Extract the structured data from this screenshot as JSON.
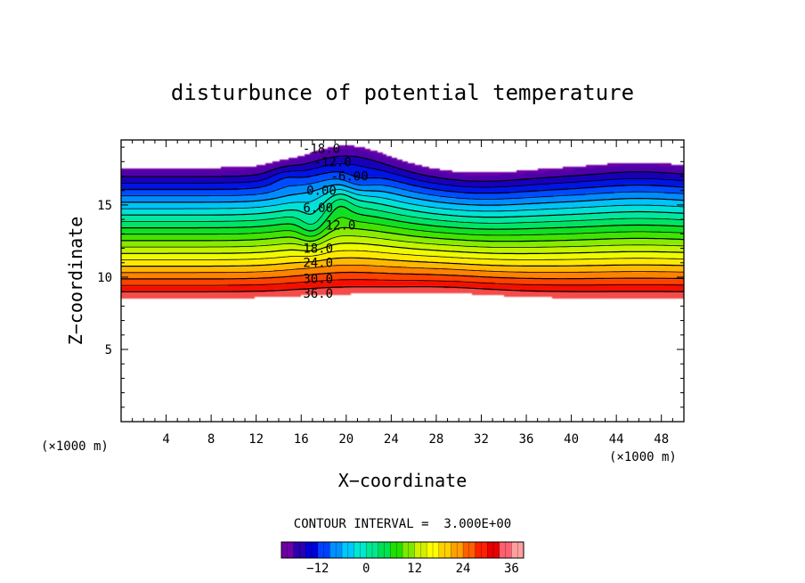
{
  "chart_data": {
    "type": "contour",
    "title": "disturbunce of potential temperature",
    "xlabel": "X−coordinate",
    "ylabel": "Z−coordinate",
    "x_unit_label": "(×1000 m)",
    "z_unit_label": "(×1000 m)",
    "xlim": [
      0,
      50
    ],
    "ylim": [
      0,
      19.5
    ],
    "x_ticks": [
      4,
      8,
      12,
      16,
      20,
      24,
      28,
      32,
      36,
      40,
      44,
      48
    ],
    "y_ticks": [
      5,
      10,
      15
    ],
    "contour_interval_text": "CONTOUR INTERVAL =  3.000E+00",
    "contour_interval": 3,
    "negative_contours_dashed": true,
    "contour_labels": [
      {
        "text": "-18.0",
        "x": 17.8,
        "z": 18.9
      },
      {
        "text": "-12.0",
        "x": 18.8,
        "z": 18.0
      },
      {
        "text": "-6.00",
        "x": 20.3,
        "z": 17.0
      },
      {
        "text": "0.00",
        "x": 17.8,
        "z": 16.0
      },
      {
        "text": "6.00",
        "x": 17.5,
        "z": 14.8
      },
      {
        "text": "12.0",
        "x": 19.5,
        "z": 13.6
      },
      {
        "text": "18.0",
        "x": 17.5,
        "z": 12.0
      },
      {
        "text": "24.0",
        "x": 17.5,
        "z": 11.0
      },
      {
        "text": "30.0",
        "x": 17.5,
        "z": 9.9
      },
      {
        "text": "36.0",
        "x": 17.5,
        "z": 8.9
      }
    ],
    "colorbar": {
      "min": -21,
      "max": 39,
      "tick_labels": [
        "−12",
        "0",
        "12",
        "24",
        "36"
      ],
      "tick_values": [
        -12,
        0,
        12,
        24,
        36
      ],
      "colors": [
        "#6f00a8",
        "#2a00b0",
        "#0000d8",
        "#0040ff",
        "#0090ff",
        "#00c8ff",
        "#00e8d0",
        "#00e890",
        "#00e050",
        "#20e000",
        "#80e800",
        "#d0f000",
        "#ffff00",
        "#ffd000",
        "#ffa000",
        "#ff6000",
        "#ff2000",
        "#e80000",
        "#ff6070",
        "#ffa0a0"
      ]
    }
  }
}
